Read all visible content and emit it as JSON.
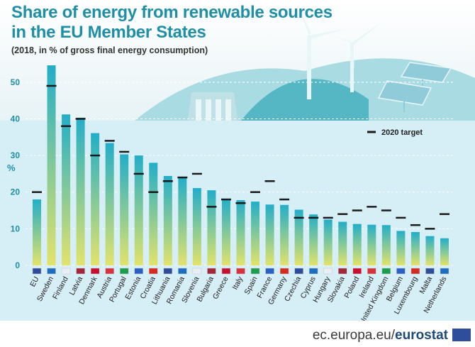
{
  "title_line1": "Share of energy from renewable sources",
  "title_line2": "in the EU Member States",
  "subtitle": "(2018, in % of gross final energy consumption)",
  "legend_label": "2020 target",
  "source_prefix": "ec.europa.eu/",
  "source_brand": "eurostat",
  "colors": {
    "title": "#1f8fa6",
    "bar_top": "#22aec9",
    "bar_bottom": "#e3e36a",
    "target": "#1a1a1a",
    "background_top": "#e6f4f6",
    "background_bottom": "#d4eef6"
  },
  "chart_data": {
    "type": "bar",
    "title": "Share of energy from renewable sources in the EU Member States",
    "subtitle": "(2018, in % of gross final energy consumption)",
    "ylabel": "%",
    "ylim": [
      0,
      55
    ],
    "yticks": [
      0,
      10,
      20,
      30,
      40,
      50
    ],
    "categories": [
      "EU",
      "Sweden",
      "Finland",
      "Latvia",
      "Denmark",
      "Austria",
      "Portugal",
      "Estonia",
      "Croatia",
      "Lithuania",
      "Romania",
      "Slovenia",
      "Bulgaria",
      "Greece",
      "Italy",
      "Spain",
      "France",
      "Germany",
      "Czechia",
      "Cyprus",
      "Hungary",
      "Slovakia",
      "Poland",
      "Ireland",
      "United Kingdom",
      "Belgium",
      "Luxembourg",
      "Malta",
      "Netherlands"
    ],
    "series": [
      {
        "name": "",
        "values": [
          18.0,
          54.6,
          41.2,
          40.3,
          36.1,
          33.4,
          30.3,
          30.0,
          28.0,
          24.4,
          23.9,
          21.1,
          20.5,
          18.0,
          17.8,
          17.4,
          16.6,
          16.5,
          15.2,
          13.9,
          12.5,
          11.9,
          11.3,
          11.1,
          11.0,
          9.4,
          9.1,
          8.0,
          7.4
        ]
      },
      {
        "name": "2020 target",
        "values": [
          20,
          49,
          38,
          40,
          30,
          34,
          31,
          25,
          20,
          23,
          24,
          25,
          16,
          18,
          17,
          20,
          23,
          18,
          13,
          13,
          13,
          14,
          15,
          16,
          15,
          13,
          11,
          10,
          14
        ]
      }
    ],
    "legend": "top-right",
    "grid": true
  }
}
